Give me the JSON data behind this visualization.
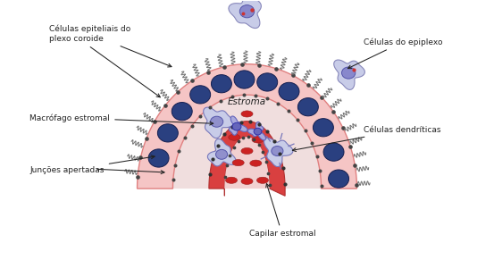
{
  "background_color": "#ffffff",
  "labels": {
    "celulas_epiteliais": "Células epiteliais do\nplexo coroide",
    "macrofago": "Macrófago estromal",
    "juncoes": "Junções apertadas",
    "estroma": "Estroma",
    "celulas_epiplexo": "Células do epiplexo",
    "celulas_dendriticas": "Células dendríticas",
    "capilar": "Capilar estromal"
  },
  "colors": {
    "outer_epithelium": "#f5c5c5",
    "outer_epithelium_border": "#e08080",
    "stroma_fill": "#f0dede",
    "capillary_wall": "#d94040",
    "capillary_lumen": "#f2d0d0",
    "capillary_border": "#b03030",
    "nucleus_blue": "#2a4080",
    "nucleus_dark": "#151f50",
    "tight_junction": "#444444",
    "macrophage_body": "#c8cce8",
    "macrophage_border": "#7878bb",
    "dendritic_body": "#c8cce8",
    "dendritic_border": "#7878bb",
    "epiplexo_body": "#c8cce8",
    "epiplexo_border": "#8888bb",
    "rbc_color": "#cc2222",
    "label_color": "#222222",
    "arrow_color": "#222222",
    "coil_color": "#777777",
    "wbc_body": "#aaaadd",
    "wbc_nucleus": "#7777bb"
  },
  "fig_width": 5.53,
  "fig_height": 2.91,
  "dpi": 100
}
